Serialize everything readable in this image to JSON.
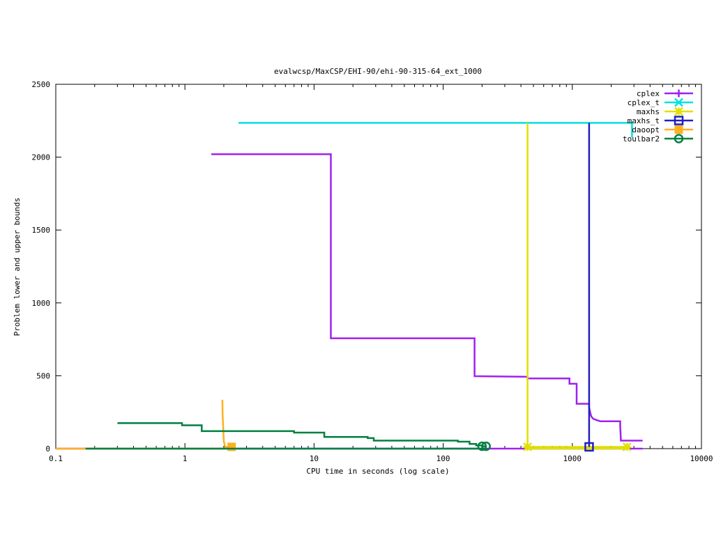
{
  "chart_data": {
    "type": "line",
    "title": "evalwcsp/MaxCSP/EHI-90/ehi-90-315-64_ext_1000",
    "xlabel": "CPU time in seconds (log scale)",
    "ylabel": "Problem lower and upper bounds",
    "xscale": "log",
    "xlim": [
      0.1,
      10000
    ],
    "ylim": [
      0,
      2500
    ],
    "x_ticks": [
      0.1,
      1,
      10,
      100,
      1000,
      10000
    ],
    "x_tick_labels": [
      "0.1",
      "1",
      "10",
      "100",
      "1000",
      "10000"
    ],
    "y_ticks": [
      0,
      500,
      1000,
      1500,
      2000,
      2500
    ],
    "y_tick_labels": [
      "0",
      "500",
      "1000",
      "1500",
      "2000",
      "2500"
    ],
    "grid": false,
    "legend_position": "top-right",
    "series": [
      {
        "name": "cplex",
        "color": "#a020f0",
        "marker": "plus",
        "step": true,
        "points": [
          [
            1.6,
            2020
          ],
          [
            13.5,
            2020
          ],
          [
            13.5,
            757
          ],
          [
            175,
            757
          ],
          [
            175,
            497
          ],
          [
            450,
            493
          ],
          [
            450,
            482
          ],
          [
            950,
            482
          ],
          [
            950,
            445
          ],
          [
            1080,
            445
          ],
          [
            1080,
            308
          ],
          [
            1350,
            308
          ],
          [
            1350,
            285
          ],
          [
            1370,
            255
          ],
          [
            1400,
            222
          ],
          [
            1450,
            205
          ],
          [
            1550,
            195
          ],
          [
            1650,
            188
          ],
          [
            2350,
            188
          ],
          [
            2350,
            155
          ],
          [
            2380,
            55
          ],
          [
            3500,
            55
          ]
        ],
        "lower_bound": [
          [
            0.1,
            0
          ],
          [
            3500,
            0
          ]
        ],
        "markers": []
      },
      {
        "name": "cplex_t",
        "color": "#00e0e0",
        "marker": "x",
        "step": true,
        "points": [
          [
            2.6,
            2235
          ],
          [
            2900,
            2235
          ],
          [
            2900,
            2135
          ]
        ],
        "markers": []
      },
      {
        "name": "maxhs",
        "color": "#e0e000",
        "marker": "star",
        "step": true,
        "points": [
          [
            450,
            2235
          ],
          [
            450,
            12
          ],
          [
            2650,
            12
          ]
        ],
        "lower_bound": [
          [
            450,
            0
          ],
          [
            2650,
            0
          ]
        ],
        "markers": [
          [
            450,
            12
          ],
          [
            2650,
            12
          ]
        ]
      },
      {
        "name": "maxhs_t",
        "color": "#2020c0",
        "marker": "square",
        "step": true,
        "points": [
          [
            1350,
            2235
          ],
          [
            1350,
            12
          ]
        ],
        "markers": [
          [
            1350,
            12
          ]
        ]
      },
      {
        "name": "daoopt",
        "color": "#ffb020",
        "marker": "filled-square",
        "step": true,
        "points": [
          [
            1.95,
            335
          ],
          [
            1.96,
            230
          ],
          [
            2.0,
            50
          ],
          [
            2.05,
            12
          ],
          [
            2.3,
            12
          ]
        ],
        "lower_bound": [
          [
            0.1,
            0
          ],
          [
            2.3,
            0
          ]
        ],
        "markers": [
          [
            2.3,
            12
          ]
        ]
      },
      {
        "name": "toulbar2",
        "color": "#008040",
        "marker": "circle",
        "step": true,
        "points": [
          [
            0.3,
            175
          ],
          [
            0.95,
            175
          ],
          [
            0.95,
            160
          ],
          [
            1.35,
            160
          ],
          [
            1.35,
            120
          ],
          [
            7.0,
            120
          ],
          [
            7.0,
            110
          ],
          [
            12.0,
            110
          ],
          [
            12.0,
            80
          ],
          [
            26,
            80
          ],
          [
            26,
            72
          ],
          [
            29,
            72
          ],
          [
            29,
            55
          ],
          [
            130,
            55
          ],
          [
            130,
            48
          ],
          [
            160,
            48
          ],
          [
            160,
            32
          ],
          [
            180,
            32
          ],
          [
            180,
            22
          ],
          [
            200,
            22
          ],
          [
            200,
            16
          ],
          [
            215,
            16
          ]
        ],
        "lower_bound": [
          [
            0.17,
            0
          ],
          [
            215,
            0
          ]
        ],
        "markers": [
          [
            200,
            16
          ],
          [
            215,
            16
          ]
        ]
      }
    ]
  }
}
